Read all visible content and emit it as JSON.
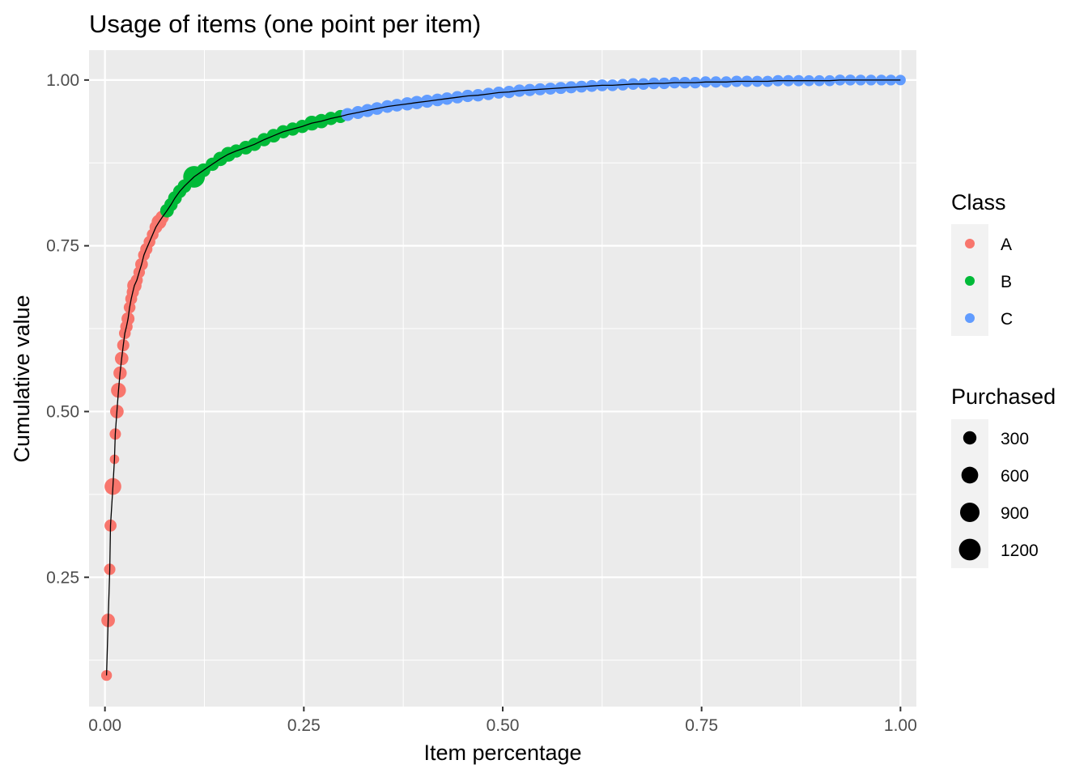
{
  "chart_data": {
    "type": "scatter",
    "title": "Usage of items (one point per item)",
    "xlabel": "Item percentage",
    "ylabel": "Cumulative value",
    "xlim": [
      -0.02,
      1.02
    ],
    "ylim": [
      0.055,
      1.045
    ],
    "xticks": [
      0.0,
      0.25,
      0.5,
      0.75,
      1.0
    ],
    "xtick_labels": [
      "0.00",
      "0.25",
      "0.50",
      "0.75",
      "1.00"
    ],
    "yticks": [
      0.25,
      0.5,
      0.75,
      1.0
    ],
    "ytick_labels": [
      "0.25",
      "0.50",
      "0.75",
      "1.00"
    ],
    "minor_x": [
      0.125,
      0.375,
      0.625,
      0.875
    ],
    "minor_y": [
      0.125,
      0.375,
      0.625,
      0.875
    ],
    "background": "#EBEBEB",
    "grid_color": "#FFFFFF",
    "curve": {
      "name": "Cumulative curve (fit)",
      "color": "#000000"
    },
    "legend_class": {
      "title": "Class",
      "entries": [
        {
          "label": "A",
          "color": "#F8766D"
        },
        {
          "label": "B",
          "color": "#00BA38"
        },
        {
          "label": "C",
          "color": "#619CFF"
        }
      ]
    },
    "legend_size": {
      "title": "Purchased",
      "entries": [
        {
          "label": "300",
          "value": 300
        },
        {
          "label": "600",
          "value": 600
        },
        {
          "label": "900",
          "value": 900
        },
        {
          "label": "1200",
          "value": 1200
        }
      ]
    },
    "series": [
      {
        "name": "A",
        "color": "#F8766D",
        "points": [
          [
            0.002,
            0.102,
            150
          ],
          [
            0.004,
            0.185,
            320
          ],
          [
            0.006,
            0.262,
            180
          ],
          [
            0.007,
            0.328,
            220
          ],
          [
            0.01,
            0.387,
            600
          ],
          [
            0.012,
            0.428,
            90
          ],
          [
            0.013,
            0.466,
            180
          ],
          [
            0.015,
            0.5,
            320
          ],
          [
            0.017,
            0.532,
            430
          ],
          [
            0.019,
            0.558,
            300
          ],
          [
            0.021,
            0.58,
            320
          ],
          [
            0.023,
            0.6,
            230
          ],
          [
            0.025,
            0.618,
            200
          ],
          [
            0.027,
            0.628,
            240
          ],
          [
            0.029,
            0.64,
            280
          ],
          [
            0.031,
            0.657,
            200
          ],
          [
            0.033,
            0.67,
            210
          ],
          [
            0.035,
            0.68,
            230
          ],
          [
            0.037,
            0.69,
            380
          ],
          [
            0.04,
            0.698,
            220
          ],
          [
            0.043,
            0.71,
            190
          ],
          [
            0.046,
            0.722,
            260
          ],
          [
            0.049,
            0.736,
            200
          ],
          [
            0.052,
            0.745,
            230
          ],
          [
            0.056,
            0.756,
            200
          ],
          [
            0.06,
            0.767,
            200
          ],
          [
            0.064,
            0.778,
            260
          ],
          [
            0.068,
            0.786,
            420
          ],
          [
            0.072,
            0.793,
            300
          ]
        ]
      },
      {
        "name": "B",
        "color": "#00BA38",
        "points": [
          [
            0.078,
            0.803,
            330
          ],
          [
            0.083,
            0.812,
            300
          ],
          [
            0.088,
            0.822,
            330
          ],
          [
            0.094,
            0.832,
            300
          ],
          [
            0.1,
            0.84,
            320
          ],
          [
            0.112,
            0.854,
            1200
          ],
          [
            0.124,
            0.864,
            330
          ],
          [
            0.135,
            0.873,
            300
          ],
          [
            0.145,
            0.881,
            380
          ],
          [
            0.155,
            0.888,
            420
          ],
          [
            0.165,
            0.893,
            300
          ],
          [
            0.177,
            0.898,
            330
          ],
          [
            0.188,
            0.903,
            300
          ],
          [
            0.2,
            0.91,
            300
          ],
          [
            0.212,
            0.916,
            330
          ],
          [
            0.224,
            0.922,
            300
          ],
          [
            0.236,
            0.926,
            300
          ],
          [
            0.248,
            0.93,
            300
          ],
          [
            0.26,
            0.935,
            420
          ],
          [
            0.272,
            0.938,
            380
          ],
          [
            0.284,
            0.942,
            300
          ],
          [
            0.296,
            0.945,
            280
          ]
        ]
      },
      {
        "name": "C",
        "color": "#619CFF",
        "points": [
          [
            0.305,
            0.948,
            280
          ],
          [
            0.318,
            0.951,
            280
          ],
          [
            0.33,
            0.954,
            280
          ],
          [
            0.342,
            0.957,
            260
          ],
          [
            0.355,
            0.96,
            260
          ],
          [
            0.367,
            0.962,
            260
          ],
          [
            0.38,
            0.964,
            300
          ],
          [
            0.392,
            0.966,
            300
          ],
          [
            0.405,
            0.968,
            280
          ],
          [
            0.418,
            0.97,
            260
          ],
          [
            0.43,
            0.972,
            240
          ],
          [
            0.443,
            0.974,
            240
          ],
          [
            0.456,
            0.976,
            240
          ],
          [
            0.469,
            0.977,
            240
          ],
          [
            0.482,
            0.979,
            240
          ],
          [
            0.495,
            0.981,
            220
          ],
          [
            0.508,
            0.982,
            240
          ],
          [
            0.521,
            0.984,
            240
          ],
          [
            0.534,
            0.985,
            230
          ],
          [
            0.547,
            0.986,
            220
          ],
          [
            0.56,
            0.987,
            220
          ],
          [
            0.573,
            0.988,
            220
          ],
          [
            0.586,
            0.989,
            220
          ],
          [
            0.599,
            0.99,
            210
          ],
          [
            0.612,
            0.991,
            210
          ],
          [
            0.625,
            0.992,
            210
          ],
          [
            0.638,
            0.992,
            200
          ],
          [
            0.651,
            0.993,
            200
          ],
          [
            0.664,
            0.994,
            200
          ],
          [
            0.677,
            0.994,
            200
          ],
          [
            0.69,
            0.995,
            200
          ],
          [
            0.703,
            0.995,
            190
          ],
          [
            0.716,
            0.996,
            190
          ],
          [
            0.729,
            0.996,
            190
          ],
          [
            0.742,
            0.996,
            190
          ],
          [
            0.755,
            0.997,
            180
          ],
          [
            0.768,
            0.997,
            180
          ],
          [
            0.781,
            0.997,
            180
          ],
          [
            0.794,
            0.998,
            180
          ],
          [
            0.807,
            0.998,
            180
          ],
          [
            0.82,
            0.998,
            170
          ],
          [
            0.833,
            0.998,
            170
          ],
          [
            0.846,
            0.999,
            170
          ],
          [
            0.859,
            0.999,
            170
          ],
          [
            0.872,
            0.999,
            170
          ],
          [
            0.885,
            0.999,
            160
          ],
          [
            0.898,
            0.999,
            160
          ],
          [
            0.911,
            0.999,
            160
          ],
          [
            0.924,
            1.0,
            160
          ],
          [
            0.937,
            1.0,
            160
          ],
          [
            0.95,
            1.0,
            150
          ],
          [
            0.963,
            1.0,
            150
          ],
          [
            0.976,
            1.0,
            150
          ],
          [
            0.988,
            1.0,
            150
          ],
          [
            1.0,
            1.0,
            140
          ]
        ]
      }
    ]
  }
}
